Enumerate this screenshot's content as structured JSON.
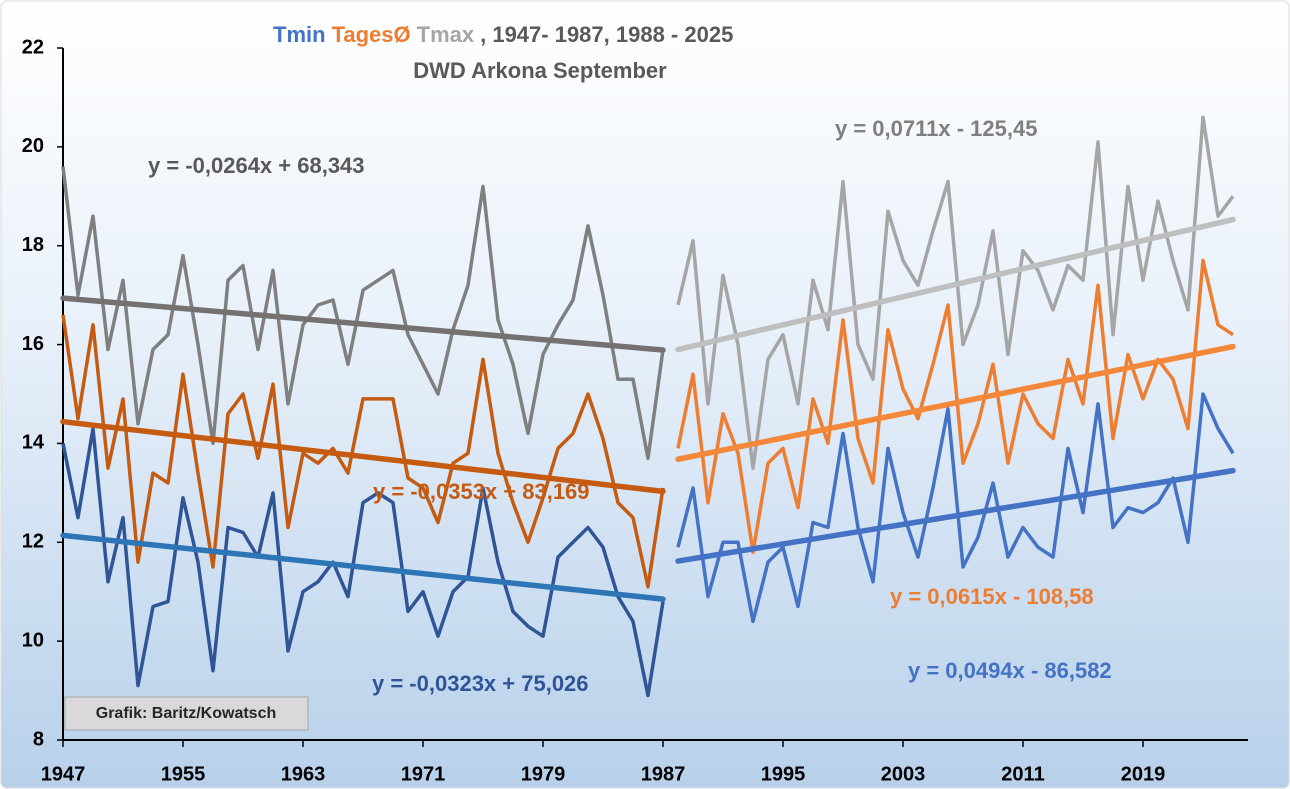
{
  "chart_data": {
    "type": "line",
    "title": ", 1947- 1987, 1988 - 2025",
    "subtitle": "DWD Arkona September",
    "credit": "Grafik: Baritz/Kowatsch",
    "xlim": [
      1947,
      2026
    ],
    "ylim": [
      8,
      22
    ],
    "xticks": [
      1947,
      1955,
      1963,
      1971,
      1979,
      1987,
      1995,
      2003,
      2011,
      2019
    ],
    "yticks": [
      8,
      10,
      12,
      14,
      16,
      18,
      20,
      22
    ],
    "periods": [
      {
        "x": [
          1947,
          1948,
          1949,
          1950,
          1951,
          1952,
          1953,
          1954,
          1955,
          1956,
          1957,
          1958,
          1959,
          1960,
          1961,
          1962,
          1963,
          1964,
          1965,
          1966,
          1967,
          1968,
          1969,
          1970,
          1971,
          1972,
          1973,
          1974,
          1975,
          1976,
          1977,
          1978,
          1979,
          1980,
          1981,
          1982,
          1983,
          1984,
          1985,
          1986,
          1987
        ]
      },
      {
        "x": [
          1988,
          1989,
          1990,
          1991,
          1992,
          1993,
          1994,
          1995,
          1996,
          1997,
          1998,
          1999,
          2000,
          2001,
          2002,
          2003,
          2004,
          2005,
          2006,
          2007,
          2008,
          2009,
          2010,
          2011,
          2012,
          2013,
          2014,
          2015,
          2016,
          2017,
          2018,
          2019,
          2020,
          2021,
          2022,
          2023,
          2024,
          2025
        ]
      }
    ],
    "series": [
      {
        "name": "Tmin",
        "color": "#4472c4",
        "pieces": [
          {
            "color": "#2f5597",
            "values": [
              14.0,
              12.5,
              14.3,
              11.2,
              12.5,
              9.1,
              10.7,
              10.8,
              12.9,
              11.6,
              9.4,
              12.3,
              12.2,
              11.7,
              13.0,
              9.8,
              11.0,
              11.2,
              11.6,
              10.9,
              12.8,
              13.0,
              12.8,
              10.6,
              11.0,
              10.1,
              11.0,
              11.3,
              13.1,
              11.6,
              10.6,
              10.3,
              10.1,
              11.7,
              12.0,
              12.3,
              11.9,
              10.9,
              10.4,
              8.9,
              10.8
            ]
          },
          {
            "color": "#4472c4",
            "values": [
              11.9,
              13.1,
              10.9,
              12.0,
              12.0,
              10.4,
              11.6,
              11.9,
              10.7,
              12.4,
              12.3,
              14.2,
              12.3,
              11.2,
              13.9,
              12.6,
              11.7,
              13.1,
              14.7,
              11.5,
              12.1,
              13.2,
              11.7,
              12.3,
              11.9,
              11.7,
              13.9,
              12.6,
              14.8,
              12.3,
              12.7,
              12.6,
              12.8,
              13.3,
              12.0,
              15.0,
              14.3,
              13.8
            ]
          }
        ]
      },
      {
        "name": "TagesØ",
        "color": "#ed7d31",
        "pieces": [
          {
            "color": "#c55a11",
            "values": [
              16.6,
              14.5,
              16.4,
              13.5,
              14.9,
              11.6,
              13.4,
              13.2,
              15.4,
              13.4,
              11.5,
              14.6,
              15.0,
              13.7,
              15.2,
              12.3,
              13.8,
              13.6,
              13.9,
              13.4,
              14.9,
              14.9,
              14.9,
              13.3,
              13.1,
              12.4,
              13.6,
              13.8,
              15.7,
              13.8,
              12.8,
              12.0,
              12.9,
              13.9,
              14.2,
              15.0,
              14.1,
              12.8,
              12.5,
              11.1,
              13.1
            ]
          },
          {
            "color": "#ed7d31",
            "values": [
              13.9,
              15.4,
              12.8,
              14.6,
              13.8,
              11.8,
              13.6,
              13.9,
              12.7,
              14.9,
              14.0,
              16.5,
              14.1,
              13.2,
              16.3,
              15.1,
              14.5,
              15.6,
              16.8,
              13.6,
              14.4,
              15.6,
              13.6,
              15.0,
              14.4,
              14.1,
              15.7,
              14.8,
              17.2,
              14.1,
              15.8,
              14.9,
              15.7,
              15.3,
              14.3,
              17.7,
              16.4,
              16.2
            ]
          }
        ]
      },
      {
        "name": "Tmax",
        "color": "#a5a5a5",
        "pieces": [
          {
            "color": "#7f7f7f",
            "values": [
              19.6,
              17.0,
              18.6,
              15.9,
              17.3,
              14.4,
              15.9,
              16.2,
              17.8,
              16.0,
              14.0,
              17.3,
              17.6,
              15.9,
              17.5,
              14.8,
              16.4,
              16.8,
              16.9,
              15.6,
              17.1,
              17.3,
              17.5,
              16.2,
              15.6,
              15.0,
              16.3,
              17.2,
              19.2,
              16.5,
              15.6,
              14.2,
              15.8,
              16.4,
              16.9,
              18.4,
              17.0,
              15.3,
              15.3,
              13.7,
              15.9
            ]
          },
          {
            "color": "#a5a5a5",
            "values": [
              16.8,
              18.1,
              14.8,
              17.4,
              16.0,
              13.5,
              15.7,
              16.2,
              14.8,
              17.3,
              16.3,
              19.3,
              16.0,
              15.3,
              18.7,
              17.7,
              17.2,
              18.3,
              19.3,
              16.0,
              16.8,
              18.3,
              15.8,
              17.9,
              17.5,
              16.7,
              17.6,
              17.3,
              20.1,
              16.2,
              19.2,
              17.3,
              18.9,
              17.7,
              16.7,
              20.6,
              18.6,
              19.0
            ]
          }
        ]
      }
    ],
    "trend_lines": [
      {
        "x": [
          1947,
          1987
        ],
        "values": [
          16.94,
          15.89
        ],
        "color": "#767171",
        "label": "y = -0,0264x + 68,343",
        "label_color": "#595959"
      },
      {
        "x": [
          1988,
          2025
        ],
        "values": [
          15.9,
          18.53
        ],
        "color": "#bfbfbf",
        "label": "y = 0,0711x - 125,45",
        "label_color": "#7f7f7f"
      },
      {
        "x": [
          1947,
          1987
        ],
        "values": [
          14.44,
          13.03
        ],
        "color": "#c55a11",
        "label": "y = -0,0353x + 83,169",
        "label_color": "#c55a11"
      },
      {
        "x": [
          1988,
          2025
        ],
        "values": [
          13.68,
          15.96
        ],
        "color": "#f4883a",
        "label": "y = 0,0615x - 108,58",
        "label_color": "#ed7d31"
      },
      {
        "x": [
          1947,
          1987
        ],
        "values": [
          12.14,
          10.85
        ],
        "color": "#2e75b6",
        "label": "y = -0,0323x + 75,026",
        "label_color": "#2f5597"
      },
      {
        "x": [
          1988,
          2025
        ],
        "values": [
          11.62,
          13.45
        ],
        "color": "#4472c4",
        "label": "y = 0,0494x - 86,582",
        "label_color": "#4472c4"
      }
    ]
  }
}
